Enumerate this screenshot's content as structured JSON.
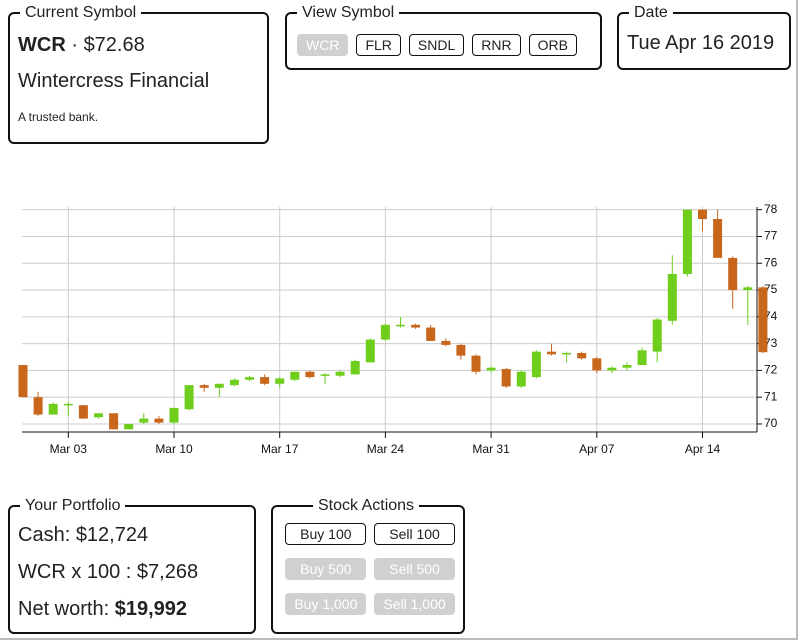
{
  "current_symbol": {
    "legend": "Current Symbol",
    "symbol": "WCR",
    "separator": "·",
    "price": "$72.68",
    "name": "Wintercress Financial",
    "description": "A trusted bank."
  },
  "view_symbol": {
    "legend": "View Symbol",
    "buttons": [
      {
        "label": "WCR",
        "disabled": true
      },
      {
        "label": "FLR",
        "disabled": false
      },
      {
        "label": "SNDL",
        "disabled": false
      },
      {
        "label": "RNR",
        "disabled": false
      },
      {
        "label": "ORB",
        "disabled": false
      }
    ]
  },
  "date": {
    "legend": "Date",
    "value": "Tue Apr 16 2019"
  },
  "chart_data": {
    "type": "candlestick",
    "categories": [
      null,
      null,
      null,
      "Mar 03",
      null,
      null,
      null,
      null,
      null,
      null,
      "Mar 10",
      null,
      null,
      null,
      null,
      null,
      null,
      "Mar 17",
      null,
      null,
      null,
      null,
      null,
      null,
      "Mar 24",
      null,
      null,
      null,
      null,
      null,
      null,
      "Mar 31",
      null,
      null,
      null,
      null,
      null,
      null,
      "Apr 07",
      null,
      null,
      null,
      null,
      null,
      null,
      "Apr 14",
      null,
      null,
      null,
      null
    ],
    "open": [
      72.2,
      71.0,
      70.35,
      70.7,
      70.7,
      70.25,
      70.4,
      69.8,
      70.05,
      70.2,
      70.05,
      70.55,
      71.45,
      71.35,
      71.45,
      71.65,
      71.75,
      71.5,
      71.65,
      71.95,
      71.8,
      71.8,
      71.85,
      72.3,
      73.15,
      73.65,
      73.7,
      73.6,
      73.1,
      72.95,
      72.55,
      72.0,
      72.05,
      71.4,
      71.75,
      72.7,
      72.6,
      72.65,
      72.45,
      72.0,
      72.1,
      72.2,
      72.7,
      73.85,
      75.6,
      78.0,
      77.65,
      76.2,
      75.0,
      75.1
    ],
    "high": [
      72.2,
      71.2,
      70.8,
      70.8,
      70.7,
      70.4,
      70.4,
      70.0,
      70.4,
      70.3,
      70.6,
      71.45,
      71.5,
      71.5,
      71.7,
      71.8,
      71.85,
      71.75,
      71.95,
      72.0,
      71.9,
      72.0,
      72.4,
      73.2,
      73.75,
      74.0,
      73.75,
      73.7,
      73.2,
      73.0,
      72.6,
      72.15,
      72.1,
      72.0,
      72.75,
      73.0,
      72.7,
      72.7,
      72.5,
      72.15,
      72.3,
      72.85,
      73.95,
      76.3,
      78.0,
      78.0,
      78.0,
      76.25,
      75.15,
      75.15
    ],
    "low": [
      71.0,
      70.3,
      70.35,
      70.3,
      70.2,
      70.2,
      69.8,
      69.8,
      70.0,
      70.0,
      70.0,
      70.5,
      71.2,
      71.0,
      71.4,
      71.6,
      71.45,
      71.35,
      71.6,
      71.7,
      71.5,
      71.75,
      71.85,
      72.3,
      73.1,
      73.6,
      73.55,
      73.1,
      72.9,
      72.4,
      71.85,
      71.9,
      71.35,
      71.35,
      71.7,
      72.55,
      72.3,
      72.4,
      71.9,
      71.9,
      72.0,
      72.2,
      72.3,
      73.7,
      75.5,
      77.2,
      76.2,
      74.3,
      73.7,
      72.65
    ],
    "close": [
      71.0,
      70.35,
      70.75,
      70.75,
      70.2,
      70.4,
      69.8,
      70.0,
      70.2,
      70.05,
      70.6,
      71.45,
      71.35,
      71.5,
      71.65,
      71.75,
      71.5,
      71.7,
      71.95,
      71.75,
      71.85,
      71.95,
      72.35,
      73.15,
      73.7,
      73.7,
      73.6,
      73.1,
      72.95,
      72.55,
      71.95,
      72.1,
      71.4,
      71.95,
      72.7,
      72.6,
      72.65,
      72.45,
      72.0,
      72.1,
      72.2,
      72.75,
      73.9,
      75.6,
      78.0,
      77.65,
      76.2,
      75.0,
      75.1,
      72.68
    ],
    "up_color": "#6fcd1c",
    "down_color": "#c8661c",
    "ylim": [
      69.7,
      78.1
    ],
    "yticks": [
      70,
      71,
      72,
      73,
      74,
      75,
      76,
      77,
      78
    ],
    "grid": true
  },
  "portfolio": {
    "legend": "Your Portfolio",
    "cash_label": "Cash:",
    "cash": "$12,724",
    "holding": "WCR x 100 : $7,268",
    "net_worth_label": "Net worth:",
    "net_worth": "$19,992"
  },
  "stock_actions": {
    "legend": "Stock Actions",
    "buttons": [
      {
        "label": "Buy 100",
        "disabled": false
      },
      {
        "label": "Sell 100",
        "disabled": false
      },
      {
        "label": "Buy 500",
        "disabled": true
      },
      {
        "label": "Sell 500",
        "disabled": true
      },
      {
        "label": "Buy 1,000",
        "disabled": true
      },
      {
        "label": "Sell 1,000",
        "disabled": true
      }
    ]
  }
}
